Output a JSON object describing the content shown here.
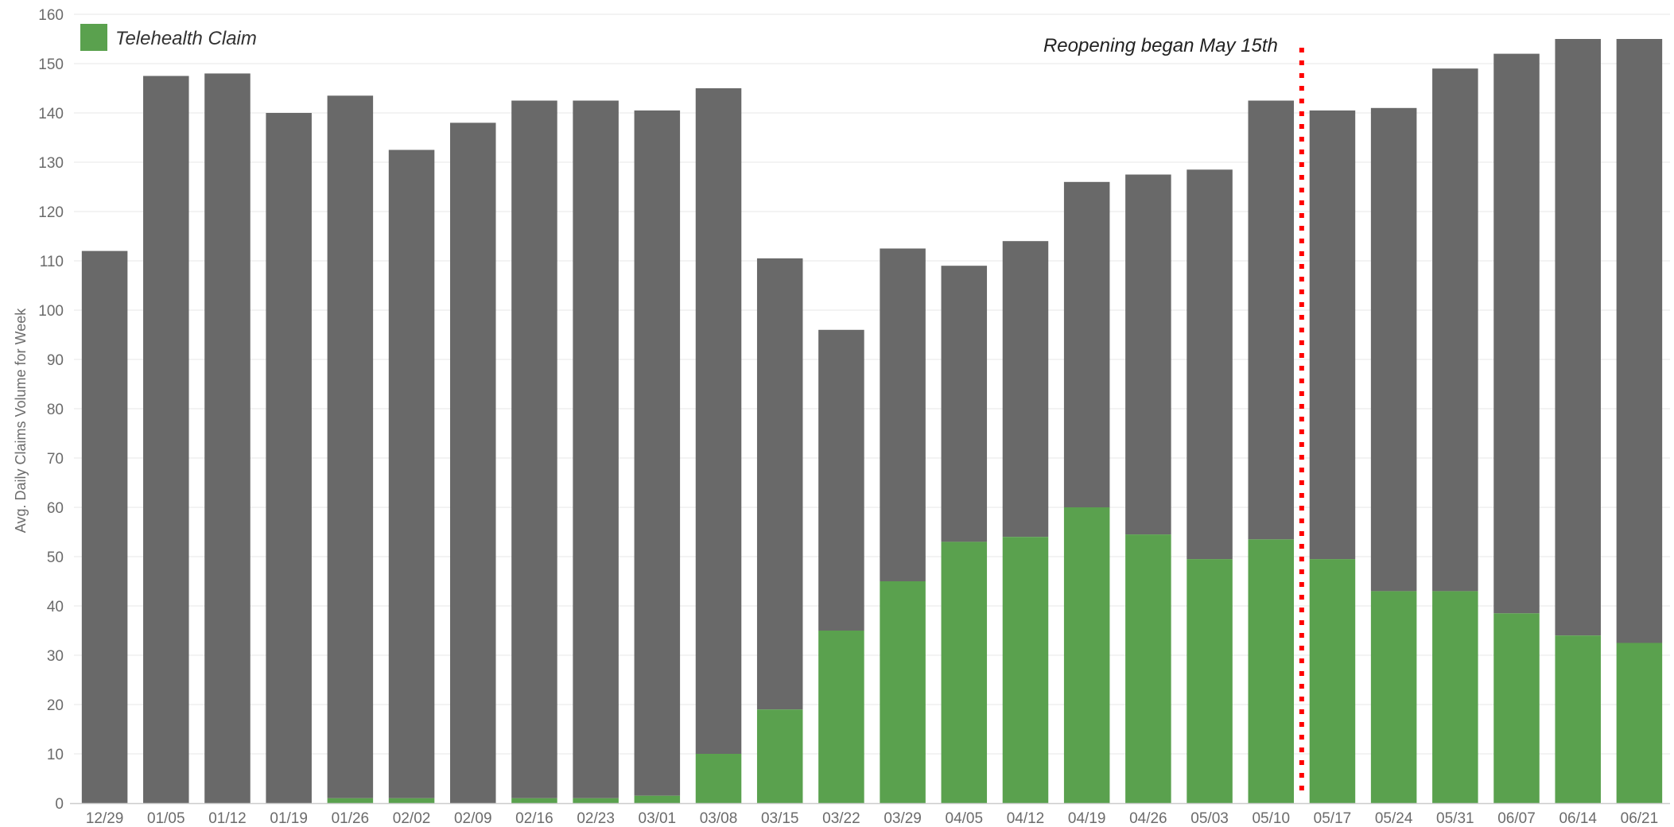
{
  "chart_data": {
    "type": "bar",
    "stacked": true,
    "categories": [
      "12/29",
      "01/05",
      "01/12",
      "01/19",
      "01/26",
      "02/02",
      "02/09",
      "02/16",
      "02/23",
      "03/01",
      "03/08",
      "03/15",
      "03/22",
      "03/29",
      "04/05",
      "04/12",
      "04/19",
      "04/26",
      "05/03",
      "05/10",
      "05/17",
      "05/24",
      "05/31",
      "06/07",
      "06/14",
      "06/21"
    ],
    "totals": [
      112,
      147.5,
      148,
      140,
      143.5,
      132.5,
      138,
      142.5,
      142.5,
      140.5,
      145,
      110.5,
      96,
      112.5,
      109,
      114,
      126,
      127.5,
      128.5,
      142.5,
      140.5,
      141,
      149,
      152,
      155,
      155
    ],
    "series": [
      {
        "name": "Telehealth Claim",
        "color": "#5aa14e",
        "values": [
          0,
          0,
          0,
          0,
          1,
          1,
          0,
          1,
          1,
          1.5,
          10,
          19,
          35,
          45,
          53,
          54,
          60,
          54.5,
          49.5,
          53.5,
          49.5,
          43,
          43,
          38.5,
          34,
          32.5
        ]
      }
    ],
    "remainder_color": "#696969",
    "xlabel": "",
    "ylabel": "Avg. Daily Claims Volume for Week",
    "ylim": [
      0,
      160
    ],
    "yticks": [
      0,
      10,
      20,
      30,
      40,
      50,
      60,
      70,
      80,
      90,
      100,
      110,
      120,
      130,
      140,
      150,
      160
    ],
    "grid": true,
    "legend": {
      "placement": "top-left",
      "entries": [
        "Telehealth Claim"
      ]
    },
    "annotation": {
      "text": "Reopening began May 15th",
      "between": [
        "05/10",
        "05/17"
      ],
      "color": "#ff0000",
      "style": "dotted"
    }
  }
}
